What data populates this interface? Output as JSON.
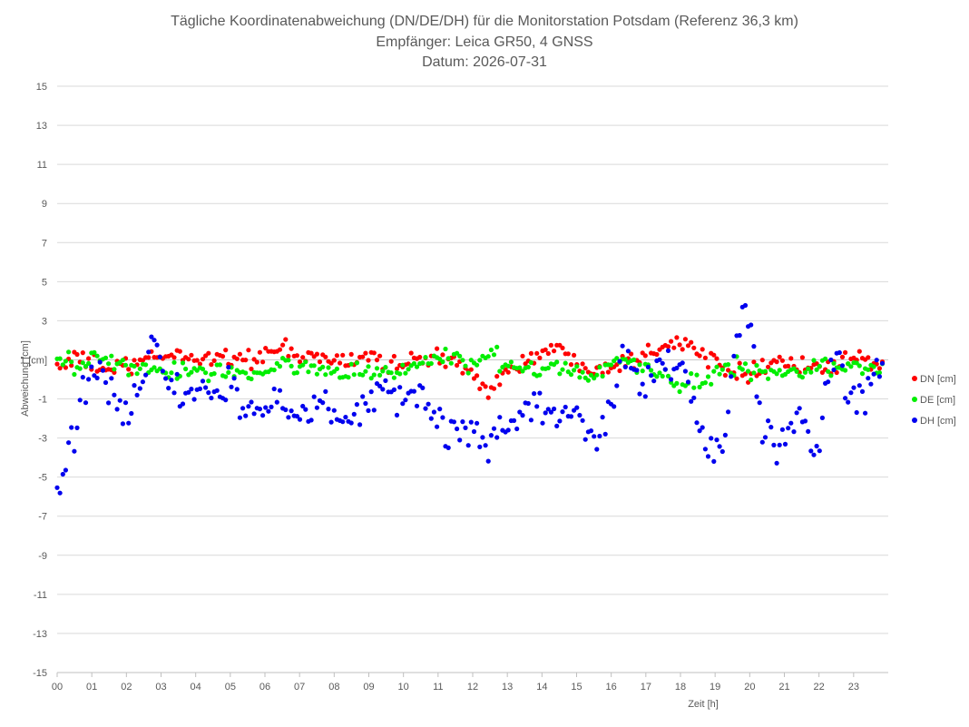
{
  "chart_data": {
    "type": "scatter",
    "title_lines": [
      "Tägliche Koordinatenabweichung (DN/DE/DH) für die Monitorstation Potsdam (Referenz 36,3 km)",
      "Empfänger: Leica GR50, 4 GNSS",
      "Datum: 2026-07-31"
    ],
    "xlabel": "Zeit [h]",
    "ylabel": "Abweichung [cm]",
    "xlim": [
      0,
      24
    ],
    "ylim": [
      -15,
      15
    ],
    "x_ticks": [
      0,
      1,
      2,
      3,
      4,
      5,
      6,
      7,
      8,
      9,
      10,
      11,
      12,
      13,
      14,
      15,
      16,
      17,
      18,
      19,
      20,
      21,
      22,
      23
    ],
    "x_tick_labels": [
      "00",
      "01",
      "02",
      "03",
      "04",
      "05",
      "06",
      "07",
      "08",
      "09",
      "10",
      "11",
      "12",
      "13",
      "14",
      "15",
      "16",
      "17",
      "18",
      "19",
      "20",
      "21",
      "22",
      "23"
    ],
    "y_ticks": [
      15,
      13,
      11,
      9,
      7,
      5,
      3,
      1,
      -1,
      -3,
      -5,
      -7,
      -9,
      -11,
      -13,
      -15
    ],
    "y_tick_labels": [
      "15",
      "13",
      "11",
      "9",
      "7",
      "5",
      "3",
      "1 [cm]",
      "-1",
      "-3",
      "-5",
      "-7",
      "-9",
      "-11",
      "-13",
      "-15"
    ],
    "grid": "horizontal",
    "legend_position": "right",
    "series": [
      {
        "name": "DN [cm]",
        "color": "#ff0000",
        "anchors": [
          [
            0,
            0.7
          ],
          [
            0.5,
            1.0
          ],
          [
            1,
            0.8
          ],
          [
            1.5,
            0.5
          ],
          [
            2,
            0.6
          ],
          [
            2.5,
            0.9
          ],
          [
            3,
            1.2
          ],
          [
            3.5,
            1.3
          ],
          [
            4,
            1.0
          ],
          [
            4.5,
            1.2
          ],
          [
            5,
            1.1
          ],
          [
            5.5,
            1.0
          ],
          [
            6,
            1.3
          ],
          [
            6.5,
            1.5
          ],
          [
            7,
            1.1
          ],
          [
            7.5,
            1.2
          ],
          [
            8,
            0.9
          ],
          [
            8.5,
            1.0
          ],
          [
            9,
            1.2
          ],
          [
            9.5,
            0.8
          ],
          [
            10,
            0.9
          ],
          [
            10.5,
            1.0
          ],
          [
            11,
            1.1
          ],
          [
            11.5,
            0.8
          ],
          [
            12,
            0.2
          ],
          [
            12.5,
            -0.4
          ],
          [
            13,
            0.4
          ],
          [
            13.5,
            0.9
          ],
          [
            14,
            1.4
          ],
          [
            14.5,
            1.5
          ],
          [
            15,
            0.9
          ],
          [
            15.5,
            0.7
          ],
          [
            16,
            0.7
          ],
          [
            16.5,
            1.0
          ],
          [
            17,
            1.3
          ],
          [
            17.5,
            1.9
          ],
          [
            18,
            2.0
          ],
          [
            18.5,
            1.3
          ],
          [
            19,
            1.0
          ],
          [
            19.5,
            0.6
          ],
          [
            20,
            0.3
          ],
          [
            20.5,
            0.9
          ],
          [
            21,
            0.9
          ],
          [
            21.5,
            0.7
          ],
          [
            22,
            0.5
          ],
          [
            22.5,
            0.7
          ],
          [
            23,
            0.9
          ],
          [
            23.83,
            0.9
          ]
        ],
        "noise": 0.45,
        "count": 290
      },
      {
        "name": "DE [cm]",
        "color": "#00ee00",
        "anchors": [
          [
            0,
            1.2
          ],
          [
            0.5,
            0.7
          ],
          [
            1,
            0.9
          ],
          [
            1.5,
            1.0
          ],
          [
            2,
            0.7
          ],
          [
            2.5,
            0.4
          ],
          [
            3,
            0.3
          ],
          [
            3.5,
            0.4
          ],
          [
            4,
            0.5
          ],
          [
            4.5,
            0.4
          ],
          [
            5,
            0.5
          ],
          [
            5.5,
            0.3
          ],
          [
            6,
            0.4
          ],
          [
            6.5,
            0.6
          ],
          [
            7,
            0.7
          ],
          [
            7.5,
            0.6
          ],
          [
            8,
            0.3
          ],
          [
            8.5,
            0.5
          ],
          [
            9,
            0.4
          ],
          [
            9.5,
            0.3
          ],
          [
            10,
            0.4
          ],
          [
            10.5,
            0.8
          ],
          [
            11,
            1.1
          ],
          [
            11.5,
            1.0
          ],
          [
            12,
            0.9
          ],
          [
            12.5,
            1.2
          ],
          [
            13,
            0.6
          ],
          [
            13.5,
            0.4
          ],
          [
            14,
            0.6
          ],
          [
            14.5,
            0.7
          ],
          [
            15,
            0.5
          ],
          [
            15.5,
            0.3
          ],
          [
            16,
            0.8
          ],
          [
            16.5,
            0.9
          ],
          [
            17,
            0.5
          ],
          [
            17.5,
            0.2
          ],
          [
            18,
            -0.5
          ],
          [
            18.5,
            0.0
          ],
          [
            19,
            0.3
          ],
          [
            19.5,
            0.6
          ],
          [
            20,
            0.5
          ],
          [
            20.5,
            0.3
          ],
          [
            21,
            0.4
          ],
          [
            21.5,
            0.6
          ],
          [
            22,
            0.8
          ],
          [
            22.5,
            0.5
          ],
          [
            23,
            0.6
          ],
          [
            23.83,
            0.8
          ]
        ],
        "noise": 0.45,
        "count": 290
      },
      {
        "name": "DH [cm]",
        "color": "#0000ee",
        "anchors": [
          [
            0,
            -5.9
          ],
          [
            0.2,
            -4.8
          ],
          [
            0.4,
            -3.2
          ],
          [
            0.6,
            -1.9
          ],
          [
            0.8,
            -0.6
          ],
          [
            1,
            0.2
          ],
          [
            1.3,
            0.3
          ],
          [
            1.6,
            -0.8
          ],
          [
            1.9,
            -2.4
          ],
          [
            2.2,
            -1.2
          ],
          [
            2.5,
            -0.3
          ],
          [
            2.8,
            2.2
          ],
          [
            3,
            0.6
          ],
          [
            3.3,
            -0.4
          ],
          [
            3.6,
            -1.0
          ],
          [
            4,
            -0.3
          ],
          [
            4.4,
            -0.6
          ],
          [
            4.8,
            -0.8
          ],
          [
            5,
            0.6
          ],
          [
            5.3,
            -1.5
          ],
          [
            5.6,
            -1.9
          ],
          [
            6,
            -1.6
          ],
          [
            6.3,
            -0.9
          ],
          [
            6.6,
            -1.1
          ],
          [
            7,
            -1.8
          ],
          [
            7.3,
            -1.4
          ],
          [
            7.6,
            -0.8
          ],
          [
            8,
            -1.9
          ],
          [
            8.3,
            -2.3
          ],
          [
            8.6,
            -1.5
          ],
          [
            9,
            -1.3
          ],
          [
            9.3,
            -0.8
          ],
          [
            9.6,
            -0.6
          ],
          [
            10,
            -1.0
          ],
          [
            10.4,
            -0.7
          ],
          [
            10.8,
            -1.4
          ],
          [
            11,
            -2.2
          ],
          [
            11.3,
            -2.8
          ],
          [
            11.6,
            -3.1
          ],
          [
            12,
            -2.5
          ],
          [
            12.3,
            -3.3
          ],
          [
            12.6,
            -3.0
          ],
          [
            13,
            -2.5
          ],
          [
            13.3,
            -1.7
          ],
          [
            13.6,
            -1.4
          ],
          [
            14,
            -1.6
          ],
          [
            14.3,
            -1.9
          ],
          [
            14.6,
            -2.1
          ],
          [
            15,
            -2.3
          ],
          [
            15.3,
            -2.2
          ],
          [
            15.6,
            -2.6
          ],
          [
            16,
            -1.5
          ],
          [
            16.3,
            0.7
          ],
          [
            16.6,
            0.9
          ],
          [
            17,
            -0.2
          ],
          [
            17.3,
            0.3
          ],
          [
            17.6,
            0.6
          ],
          [
            18,
            1.2
          ],
          [
            18.3,
            -0.8
          ],
          [
            18.6,
            -2.8
          ],
          [
            19,
            -3.6
          ],
          [
            19.3,
            -2.6
          ],
          [
            19.6,
            1.8
          ],
          [
            19.8,
            3.5
          ],
          [
            20,
            2.8
          ],
          [
            20.2,
            -0.5
          ],
          [
            20.4,
            -3.5
          ],
          [
            20.6,
            -2.6
          ],
          [
            20.8,
            -4.0
          ],
          [
            21,
            -3.3
          ],
          [
            21.3,
            -2.0
          ],
          [
            21.6,
            -2.4
          ],
          [
            21.8,
            -3.9
          ],
          [
            22,
            -2.7
          ],
          [
            22.3,
            0.8
          ],
          [
            22.6,
            1.7
          ],
          [
            22.8,
            -0.6
          ],
          [
            23,
            -1.0
          ],
          [
            23.3,
            -0.9
          ],
          [
            23.6,
            0.6
          ],
          [
            23.83,
            0.4
          ]
        ],
        "noise": 0.85,
        "count": 290
      }
    ]
  }
}
